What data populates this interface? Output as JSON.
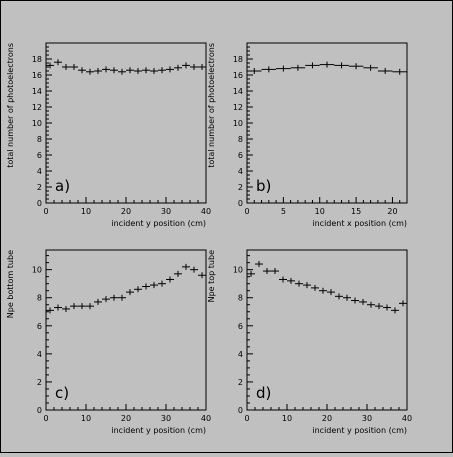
{
  "chart_data": [
    {
      "type": "scatter",
      "panel_label": "a)",
      "xlabel": "incident y position (cm)",
      "ylabel": "total number of photoelectrons",
      "xlim": [
        0,
        40
      ],
      "ylim": [
        0,
        20
      ],
      "xticks": [
        0,
        10,
        20,
        30,
        40
      ],
      "yticks": [
        0,
        2,
        4,
        6,
        8,
        10,
        12,
        14,
        16,
        18
      ],
      "bin_width": 2,
      "x": [
        1,
        3,
        5,
        7,
        9,
        11,
        13,
        15,
        17,
        19,
        21,
        23,
        25,
        27,
        29,
        31,
        33,
        35,
        37,
        39
      ],
      "y": [
        17.2,
        17.6,
        17.0,
        17.0,
        16.6,
        16.4,
        16.5,
        16.7,
        16.6,
        16.4,
        16.6,
        16.5,
        16.6,
        16.5,
        16.6,
        16.7,
        16.9,
        17.2,
        17.0,
        17.0
      ]
    },
    {
      "type": "scatter",
      "panel_label": "b)",
      "xlabel": "incident x position (cm)",
      "ylabel": "total number of photoelectrons",
      "xlim": [
        0,
        22
      ],
      "ylim": [
        0,
        20
      ],
      "xticks": [
        0,
        5,
        10,
        15,
        20
      ],
      "yticks": [
        0,
        2,
        4,
        6,
        8,
        10,
        12,
        14,
        16,
        18
      ],
      "bin_width": 2,
      "x": [
        1,
        3,
        5,
        7,
        9,
        11,
        13,
        15,
        17,
        19,
        21
      ],
      "y": [
        16.5,
        16.7,
        16.8,
        16.9,
        17.2,
        17.3,
        17.2,
        17.1,
        16.9,
        16.5,
        16.4
      ]
    },
    {
      "type": "scatter",
      "panel_label": "c)",
      "xlabel": "incident y position (cm)",
      "ylabel": "Npe bottom tube",
      "xlim": [
        0,
        40
      ],
      "ylim": [
        0,
        11.4
      ],
      "xticks": [
        0,
        10,
        20,
        30,
        40
      ],
      "yticks": [
        0,
        2,
        4,
        6,
        8,
        10
      ],
      "bin_width": 2,
      "x": [
        1,
        3,
        5,
        7,
        9,
        11,
        13,
        15,
        17,
        19,
        21,
        23,
        25,
        27,
        29,
        31,
        33,
        35,
        37,
        39
      ],
      "y": [
        7.1,
        7.3,
        7.2,
        7.4,
        7.4,
        7.4,
        7.7,
        7.9,
        8.0,
        8.0,
        8.4,
        8.6,
        8.8,
        8.9,
        9.0,
        9.3,
        9.7,
        10.2,
        10.0,
        9.6
      ]
    },
    {
      "type": "scatter",
      "panel_label": "d)",
      "xlabel": "incident y position (cm)",
      "ylabel": "Npe top tube",
      "xlim": [
        0,
        40
      ],
      "ylim": [
        0,
        11.4
      ],
      "xticks": [
        0,
        10,
        20,
        30,
        40
      ],
      "yticks": [
        0,
        2,
        4,
        6,
        8,
        10
      ],
      "bin_width": 2,
      "x": [
        1,
        3,
        5,
        7,
        9,
        11,
        13,
        15,
        17,
        19,
        21,
        23,
        25,
        27,
        29,
        31,
        33,
        35,
        37,
        39
      ],
      "y": [
        9.7,
        10.4,
        9.9,
        9.9,
        9.3,
        9.2,
        9.0,
        8.9,
        8.7,
        8.5,
        8.4,
        8.1,
        8.0,
        7.8,
        7.7,
        7.5,
        7.4,
        7.3,
        7.1,
        7.6
      ]
    }
  ]
}
